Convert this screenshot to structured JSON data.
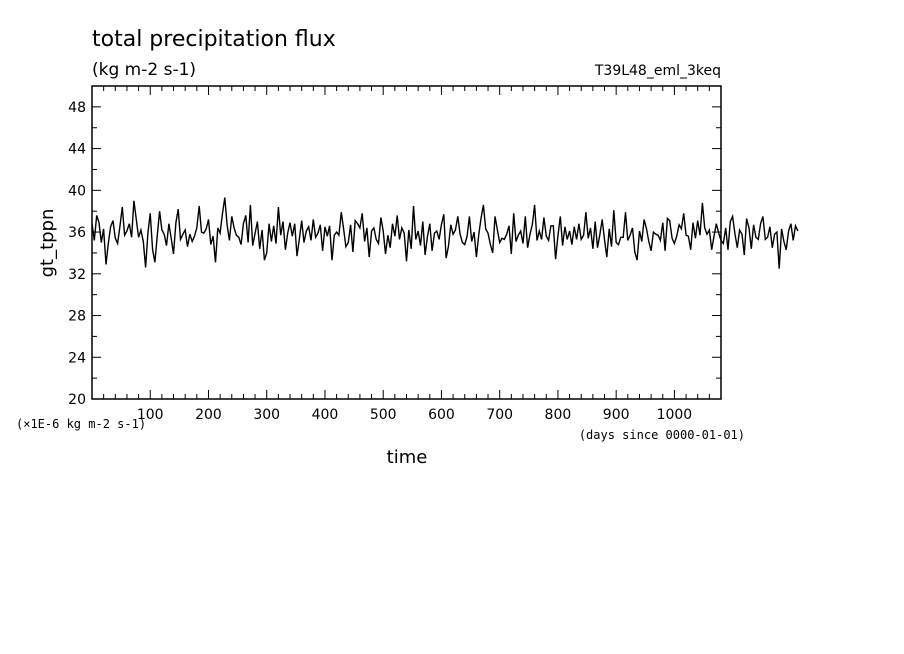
{
  "chart_data": {
    "type": "line",
    "title": "total precipitation flux",
    "subtitle": "(kg m-2 s-1)",
    "run_label": "T39L48_eml_3keq",
    "ylabel": "gt_tppn",
    "xlabel": "time",
    "y_scale_note": "(×1E-6 kg m-2 s-1)",
    "x_unit_note": "(days since 0000-01-01)",
    "xlim": [
      0,
      1080
    ],
    "ylim": [
      20,
      50
    ],
    "x_ticks": [
      "100",
      "200",
      "300",
      "400",
      "500",
      "600",
      "700",
      "800",
      "900",
      "1000"
    ],
    "y_ticks": [
      "20",
      "24",
      "28",
      "32",
      "36",
      "40",
      "44",
      "48"
    ],
    "grid": false,
    "line_color": "#000000",
    "series": [
      {
        "x_start": 0,
        "x_step": 4,
        "values": [
          36.8,
          35.2,
          37.6,
          36.9,
          35.0,
          36.3,
          32.9,
          34.9,
          36.5,
          37.1,
          35.4,
          34.9,
          36.6,
          38.4,
          35.7,
          36.1,
          36.8,
          35.5,
          39.0,
          37.2,
          35.5,
          36.2,
          35.1,
          32.6,
          35.9,
          37.8,
          34.3,
          33.1,
          35.6,
          38.0,
          36.2,
          35.8,
          34.7,
          36.8,
          35.4,
          33.9,
          36.9,
          38.2,
          35.3,
          35.8,
          36.2,
          34.6,
          35.8,
          35.1,
          35.6,
          36.4,
          38.5,
          36.0,
          35.9,
          36.3,
          37.2,
          34.8,
          35.6,
          33.1,
          36.4,
          35.9,
          37.8,
          39.3,
          36.7,
          35.2,
          37.5,
          36.4,
          35.7,
          35.5,
          34.8,
          36.8,
          37.6,
          35.0,
          38.6,
          34.7,
          35.9,
          37.0,
          34.4,
          36.2,
          33.3,
          34.0,
          36.8,
          35.1,
          36.6,
          34.9,
          38.4,
          35.7,
          37.0,
          34.3,
          35.9,
          36.9,
          35.6,
          36.8,
          33.7,
          35.3,
          37.1,
          35.0,
          36.1,
          36.5,
          35.2,
          37.2,
          35.5,
          35.9,
          36.7,
          34.2,
          36.5,
          35.6,
          36.6,
          33.3,
          35.7,
          36.0,
          35.7,
          37.9,
          36.3,
          34.6,
          35.0,
          36.7,
          34.1,
          37.1,
          36.8,
          36.4,
          37.8,
          35.1,
          36.4,
          33.6,
          36.1,
          36.4,
          35.3,
          34.9,
          37.4,
          36.1,
          33.9,
          35.7,
          34.5,
          36.8,
          35.6,
          37.6,
          35.3,
          36.4,
          35.9,
          33.2,
          36.2,
          34.4,
          38.5,
          35.3,
          36.1,
          34.7,
          37.0,
          33.8,
          35.6,
          36.8,
          34.2,
          35.9,
          36.1,
          35.3,
          36.7,
          37.7,
          33.5,
          34.6,
          36.7,
          35.8,
          36.2,
          37.5,
          35.8,
          35.0,
          34.8,
          35.6,
          37.5,
          35.1,
          36.0,
          33.6,
          35.7,
          37.3,
          38.6,
          36.3,
          35.9,
          34.8,
          34.0,
          37.5,
          36.2,
          35.0,
          35.4,
          35.3,
          35.8,
          36.6,
          33.9,
          37.8,
          35.1,
          35.7,
          36.1,
          34.9,
          37.5,
          34.5,
          35.8,
          36.7,
          38.6,
          35.2,
          36.1,
          35.3,
          37.4,
          35.6,
          35.2,
          36.6,
          36.6,
          33.4,
          35.6,
          37.5,
          34.7,
          36.5,
          35.3,
          36.1,
          34.8,
          36.5,
          35.3,
          36.8,
          35.3,
          35.7,
          37.9,
          35.4,
          36.4,
          34.4,
          37.0,
          34.5,
          35.8,
          37.2,
          35.3,
          33.6,
          36.3,
          34.6,
          38.1,
          35.0,
          34.8,
          35.5,
          35.5,
          37.9,
          35.2,
          35.7,
          36.4,
          34.1,
          33.3,
          36.1,
          35.1,
          37.2,
          36.3,
          35.1,
          34.2,
          36.0,
          35.8,
          35.7,
          35.2,
          36.9,
          34.2,
          37.3,
          37.1,
          35.4,
          34.9,
          35.6,
          36.7,
          36.3,
          37.8,
          35.7,
          35.6,
          34.3,
          36.9,
          35.4,
          37.1,
          35.7,
          38.8,
          36.4,
          35.8,
          36.2,
          34.3,
          35.6,
          36.8,
          35.9,
          35.2,
          34.9,
          36.4,
          34.3,
          37.0,
          37.5,
          35.8,
          34.5,
          36.2,
          35.8,
          33.8,
          37.3,
          36.4,
          34.4,
          36.7,
          35.5,
          35.3,
          36.8,
          37.5,
          35.3,
          35.5,
          36.5,
          34.5,
          35.8,
          36.0,
          32.5,
          36.3,
          35.1,
          34.3,
          36.1,
          36.8,
          35.2,
          36.6,
          36.1
        ]
      }
    ]
  }
}
